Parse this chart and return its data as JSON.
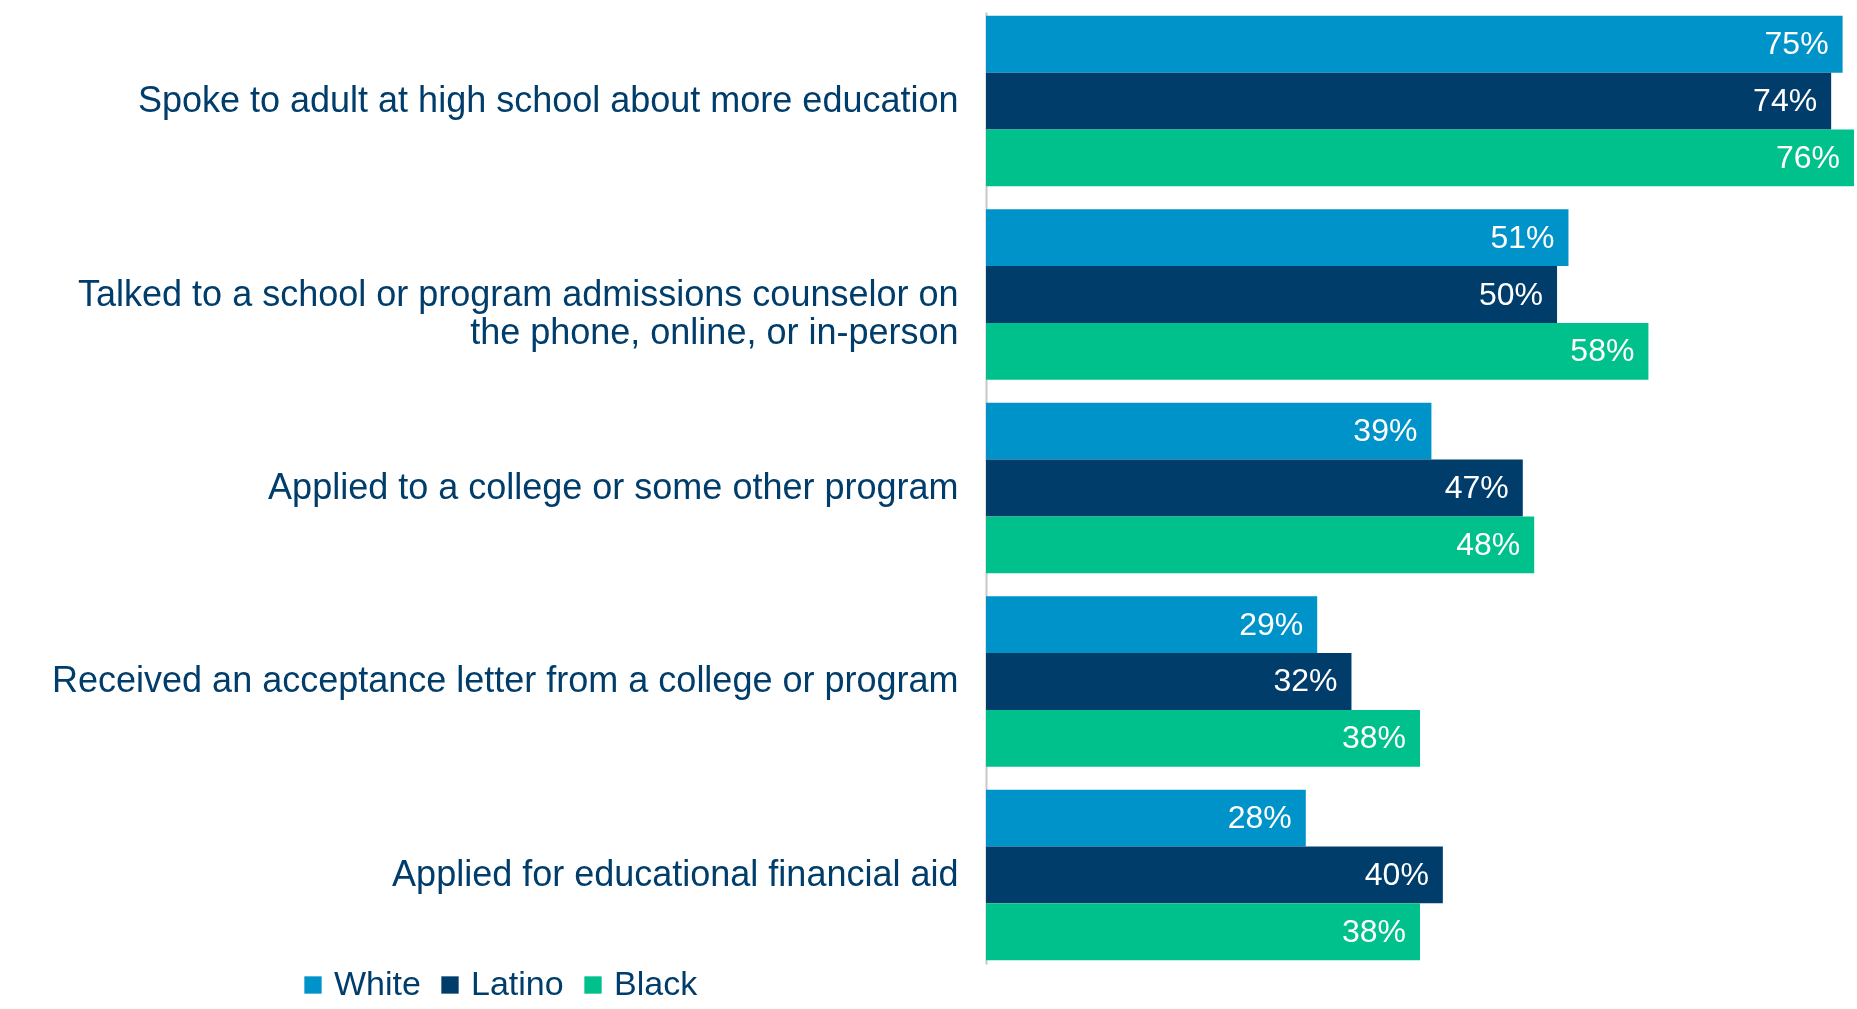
{
  "chart_data": {
    "type": "bar",
    "orientation": "horizontal",
    "categories": [
      "Spoke to adult at high school about more education",
      "Talked to a school or program admissions counselor on the phone, online, or in-person",
      "Applied to a college or some other program",
      "Received an acceptance letter from a college or program",
      "Applied for educational financial aid"
    ],
    "series": [
      {
        "name": "White",
        "color": "#0093c9",
        "values": [
          75,
          51,
          39,
          29,
          28
        ],
        "value_labels": [
          "75%",
          "51%",
          "39%",
          "29%",
          "28%"
        ]
      },
      {
        "name": "Latino",
        "color": "#003d6b",
        "values": [
          74,
          50,
          47,
          32,
          40
        ],
        "value_labels": [
          "74%",
          "50%",
          "47%",
          "32%",
          "40%"
        ]
      },
      {
        "name": "Black",
        "color": "#00c08b",
        "values": [
          76,
          58,
          48,
          38,
          38
        ],
        "value_labels": [
          "76%",
          "58%",
          "48%",
          "38%",
          "38%"
        ]
      }
    ],
    "legend": "bottom",
    "xlim": [
      0,
      76
    ]
  }
}
